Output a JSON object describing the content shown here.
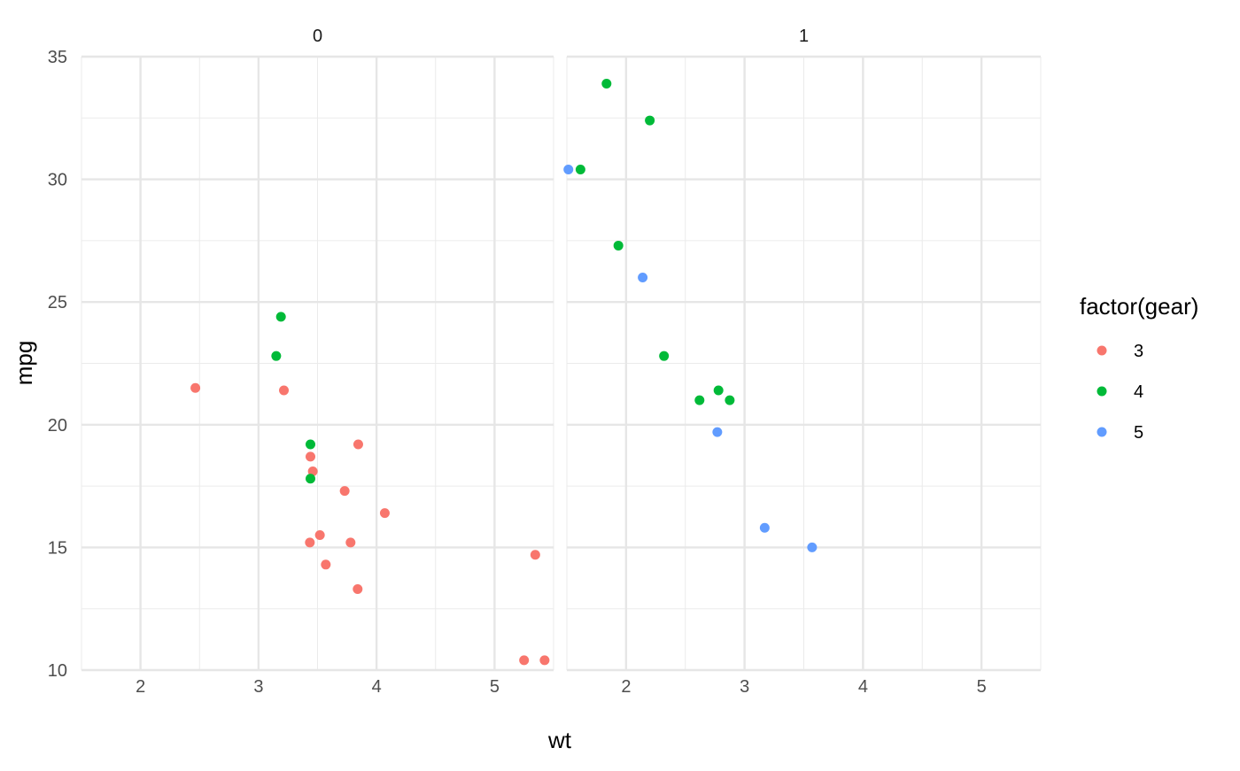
{
  "chart_data": {
    "type": "scatter",
    "facet_variable": "am",
    "xlabel": "wt",
    "ylabel": "mpg",
    "xlim": [
      1.5,
      5.5
    ],
    "ylim": [
      10,
      35
    ],
    "x_ticks": [
      2,
      3,
      4,
      5
    ],
    "y_ticks": [
      10,
      15,
      20,
      25,
      30,
      35
    ],
    "grid": true,
    "legend": {
      "title": "factor(gear)",
      "placement": "right",
      "items": [
        {
          "label": "3",
          "color": "#F8766D"
        },
        {
          "label": "4",
          "color": "#00BA38"
        },
        {
          "label": "5",
          "color": "#619CFF"
        }
      ]
    },
    "facets": [
      {
        "label": "0",
        "points": [
          {
            "x": 2.465,
            "y": 21.5,
            "gear": "3"
          },
          {
            "x": 3.215,
            "y": 21.4,
            "gear": "3"
          },
          {
            "x": 3.44,
            "y": 18.7,
            "gear": "3"
          },
          {
            "x": 3.46,
            "y": 18.1,
            "gear": "3"
          },
          {
            "x": 3.57,
            "y": 14.3,
            "gear": "3"
          },
          {
            "x": 4.07,
            "y": 16.4,
            "gear": "3"
          },
          {
            "x": 3.73,
            "y": 17.3,
            "gear": "3"
          },
          {
            "x": 3.78,
            "y": 15.2,
            "gear": "3"
          },
          {
            "x": 5.25,
            "y": 10.4,
            "gear": "3"
          },
          {
            "x": 5.424,
            "y": 10.4,
            "gear": "3"
          },
          {
            "x": 5.345,
            "y": 14.7,
            "gear": "3"
          },
          {
            "x": 3.52,
            "y": 15.5,
            "gear": "3"
          },
          {
            "x": 3.435,
            "y": 15.2,
            "gear": "3"
          },
          {
            "x": 3.84,
            "y": 13.3,
            "gear": "3"
          },
          {
            "x": 3.845,
            "y": 19.2,
            "gear": "3"
          },
          {
            "x": 3.19,
            "y": 24.4,
            "gear": "4"
          },
          {
            "x": 3.15,
            "y": 22.8,
            "gear": "4"
          },
          {
            "x": 3.44,
            "y": 19.2,
            "gear": "4"
          },
          {
            "x": 3.44,
            "y": 17.8,
            "gear": "4"
          }
        ]
      },
      {
        "label": "1",
        "points": [
          {
            "x": 2.62,
            "y": 21.0,
            "gear": "4"
          },
          {
            "x": 2.875,
            "y": 21.0,
            "gear": "4"
          },
          {
            "x": 2.32,
            "y": 22.8,
            "gear": "4"
          },
          {
            "x": 2.2,
            "y": 32.4,
            "gear": "4"
          },
          {
            "x": 1.615,
            "y": 30.4,
            "gear": "4"
          },
          {
            "x": 1.835,
            "y": 33.9,
            "gear": "4"
          },
          {
            "x": 1.935,
            "y": 27.3,
            "gear": "4"
          },
          {
            "x": 2.78,
            "y": 21.4,
            "gear": "4"
          },
          {
            "x": 2.14,
            "y": 26.0,
            "gear": "5"
          },
          {
            "x": 1.513,
            "y": 30.4,
            "gear": "5"
          },
          {
            "x": 3.17,
            "y": 15.8,
            "gear": "5"
          },
          {
            "x": 2.77,
            "y": 19.7,
            "gear": "5"
          },
          {
            "x": 3.57,
            "y": 15.0,
            "gear": "5"
          }
        ]
      }
    ]
  }
}
